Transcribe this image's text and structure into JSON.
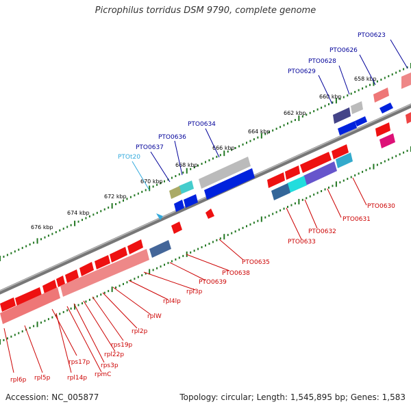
{
  "title": "Picrophilus torridus DSM 9790, complete genome",
  "footer": {
    "accession": "Accession: NC_005877",
    "summary": "Topology: circular; Length: 1,545,895 bp; Genes: 1,583"
  },
  "colors": {
    "gene_label": "#cc0000",
    "pto_label": "#000099",
    "trna_label": "#33aadd",
    "gene_fill": "#ee1111",
    "backbone": "#777777",
    "tick": "#227722"
  },
  "scale_labels": [
    "658 kbp",
    "660 kbp",
    "662 kbp",
    "664 kbp",
    "666 kbp",
    "668 kbp",
    "670 kbp",
    "672 kbp",
    "674 kbp",
    "676 kbp"
  ],
  "pto_labels": [
    "PTO0623",
    "PTO0626",
    "PTO0628",
    "PTO0629",
    "PTO0634",
    "PTO0636",
    "PTO0637",
    "PTOt20"
  ],
  "red_labels": [
    "PTO0630",
    "PTO0631",
    "PTO0632",
    "PTO0633",
    "PTO0635",
    "PTO0638",
    "PTO0639",
    "rpl3p",
    "rpl4lp",
    "rplW",
    "rpl2p",
    "rps19p",
    "rpl22p",
    "rps3p",
    "rpmC",
    "rps17p",
    "rpl14p",
    "rpl5p",
    "rpl6p"
  ]
}
